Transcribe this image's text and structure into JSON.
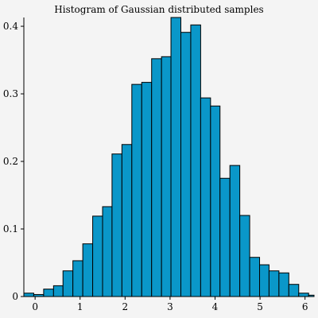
{
  "chart_data": {
    "type": "bar",
    "title": "Histogram of Gaussian distributed samples",
    "xlabel": "",
    "ylabel": "",
    "xlim": [
      -0.25,
      6.2
    ],
    "ylim": [
      0,
      0.413
    ],
    "x_ticks": [
      0,
      1,
      2,
      3,
      4,
      5,
      6
    ],
    "y_ticks": [
      0,
      0.1,
      0.2,
      0.3,
      0.4
    ],
    "x_tick_labels": [
      "0",
      "1",
      "2",
      "3",
      "4",
      "5",
      "6"
    ],
    "y_tick_labels": [
      "0",
      "0.1",
      "0.2",
      "0.3",
      "0.4"
    ],
    "grid": false,
    "bar_color": "#0a97c9",
    "bar_edge_color": "#000000",
    "bins": [
      {
        "x0": -0.25,
        "x1": -0.03,
        "value": 0.005
      },
      {
        "x0": -0.03,
        "x1": 0.19,
        "value": 0.003
      },
      {
        "x0": 0.19,
        "x1": 0.41,
        "value": 0.011
      },
      {
        "x0": 0.41,
        "x1": 0.62,
        "value": 0.016
      },
      {
        "x0": 0.62,
        "x1": 0.84,
        "value": 0.038
      },
      {
        "x0": 0.84,
        "x1": 1.06,
        "value": 0.053
      },
      {
        "x0": 1.06,
        "x1": 1.28,
        "value": 0.078
      },
      {
        "x0": 1.28,
        "x1": 1.5,
        "value": 0.119
      },
      {
        "x0": 1.5,
        "x1": 1.71,
        "value": 0.133
      },
      {
        "x0": 1.71,
        "x1": 1.93,
        "value": 0.211
      },
      {
        "x0": 1.93,
        "x1": 2.15,
        "value": 0.225
      },
      {
        "x0": 2.15,
        "x1": 2.37,
        "value": 0.314
      },
      {
        "x0": 2.37,
        "x1": 2.59,
        "value": 0.317
      },
      {
        "x0": 2.59,
        "x1": 2.81,
        "value": 0.352
      },
      {
        "x0": 2.81,
        "x1": 3.02,
        "value": 0.355
      },
      {
        "x0": 3.02,
        "x1": 3.24,
        "value": 0.413
      },
      {
        "x0": 3.24,
        "x1": 3.46,
        "value": 0.391
      },
      {
        "x0": 3.46,
        "x1": 3.68,
        "value": 0.402
      },
      {
        "x0": 3.68,
        "x1": 3.9,
        "value": 0.294
      },
      {
        "x0": 3.9,
        "x1": 4.11,
        "value": 0.282
      },
      {
        "x0": 4.11,
        "x1": 4.33,
        "value": 0.175
      },
      {
        "x0": 4.33,
        "x1": 4.55,
        "value": 0.194
      },
      {
        "x0": 4.55,
        "x1": 4.77,
        "value": 0.12
      },
      {
        "x0": 4.77,
        "x1": 4.99,
        "value": 0.058
      },
      {
        "x0": 4.99,
        "x1": 5.2,
        "value": 0.047
      },
      {
        "x0": 5.2,
        "x1": 5.42,
        "value": 0.038
      },
      {
        "x0": 5.42,
        "x1": 5.64,
        "value": 0.035
      },
      {
        "x0": 5.64,
        "x1": 5.86,
        "value": 0.018
      },
      {
        "x0": 5.86,
        "x1": 6.08,
        "value": 0.005
      },
      {
        "x0": 6.08,
        "x1": 6.2,
        "value": 0.002
      }
    ]
  }
}
